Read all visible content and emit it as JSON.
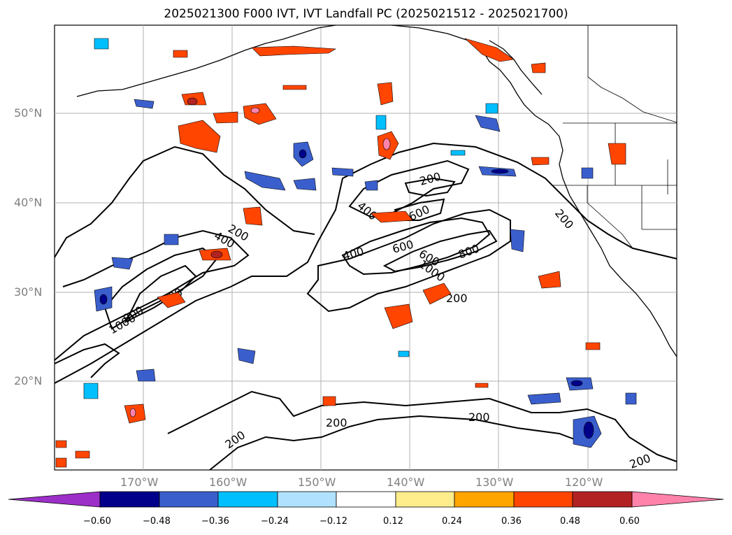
{
  "title": "2025021300 F000 IVT, IVT Landfall PC (2025021512 - 2025021700)",
  "lat_labels": [
    "50°N",
    "40°N",
    "30°N",
    "20°N"
  ],
  "lon_labels": [
    "170°W",
    "160°W",
    "150°W",
    "140°W",
    "130°W",
    "120°W"
  ],
  "contour_labels": [
    "200",
    "400",
    "600",
    "200",
    "200",
    "400",
    "600",
    "600",
    "800",
    "1000",
    "200",
    "400",
    "800",
    "800",
    "1000",
    "200",
    "200",
    "200",
    "200"
  ],
  "colorbar": {
    "ticks": [
      "−0.60",
      "−0.48",
      "−0.36",
      "−0.24",
      "−0.12",
      "0.12",
      "0.24",
      "0.36",
      "0.48",
      "0.60"
    ],
    "colors": [
      "#9b2fc7",
      "#00008b",
      "#3a5fcd",
      "#00bfff",
      "#b0e2ff",
      "#ffffff",
      "#ffec8b",
      "#ffa500",
      "#ff4500",
      "#b22222",
      "#ff82ab"
    ]
  }
}
